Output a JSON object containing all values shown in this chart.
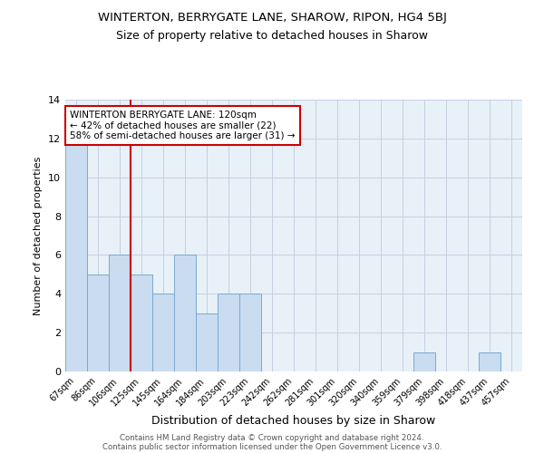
{
  "title": "WINTERTON, BERRYGATE LANE, SHAROW, RIPON, HG4 5BJ",
  "subtitle": "Size of property relative to detached houses in Sharow",
  "xlabel": "Distribution of detached houses by size in Sharow",
  "ylabel": "Number of detached properties",
  "bar_labels": [
    "67sqm",
    "86sqm",
    "106sqm",
    "125sqm",
    "145sqm",
    "164sqm",
    "184sqm",
    "203sqm",
    "223sqm",
    "242sqm",
    "262sqm",
    "281sqm",
    "301sqm",
    "320sqm",
    "340sqm",
    "359sqm",
    "379sqm",
    "398sqm",
    "418sqm",
    "437sqm",
    "457sqm"
  ],
  "bar_values": [
    12,
    5,
    6,
    5,
    4,
    6,
    3,
    4,
    4,
    0,
    0,
    0,
    0,
    0,
    0,
    0,
    1,
    0,
    0,
    1,
    0
  ],
  "bar_color": "#c9dcf0",
  "bar_edge_color": "#7aaad0",
  "annotation_title": "WINTERTON BERRYGATE LANE: 120sqm",
  "annotation_line1": "← 42% of detached houses are smaller (22)",
  "annotation_line2": "58% of semi-detached houses are larger (31) →",
  "annotation_box_edge": "#cc0000",
  "reference_line_color": "#cc0000",
  "ylim": [
    0,
    14
  ],
  "yticks": [
    0,
    2,
    4,
    6,
    8,
    10,
    12,
    14
  ],
  "footer1": "Contains HM Land Registry data © Crown copyright and database right 2024.",
  "footer2": "Contains public sector information licensed under the Open Government Licence v3.0.",
  "grid_color": "#c5d0e0",
  "background_color": "#e8f0f8"
}
